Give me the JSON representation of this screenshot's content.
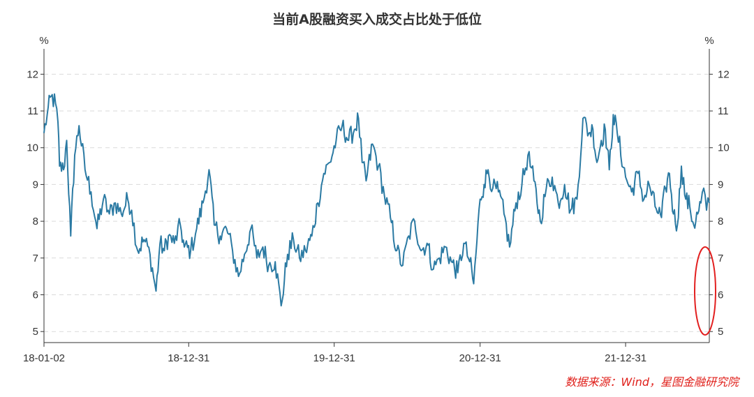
{
  "chart_data": {
    "type": "line",
    "title": "当前A股融资买入成交占比处于低位",
    "ylabel_left": "%",
    "ylabel_right": "%",
    "ylim": [
      4.7,
      12.5
    ],
    "yticks": [
      5,
      6,
      7,
      8,
      9,
      10,
      11,
      12
    ],
    "x_tick_labels": [
      "18-01-02",
      "18-12-31",
      "19-12-31",
      "20-12-31",
      "21-12-31"
    ],
    "x_range": [
      "2018-01-02",
      "2022-07-29"
    ],
    "grid": "horizontal dashed",
    "annotation": "red ellipse highlighting latest low values (2022-04 to 2022-07)",
    "series": [
      {
        "color": "#2b7aa3",
        "points": [
          [
            "2018-01-02",
            10.4
          ],
          [
            "2018-01-10",
            10.9
          ],
          [
            "2018-01-20",
            11.4
          ],
          [
            "2018-01-31",
            11.2
          ],
          [
            "2018-02-06",
            10.7
          ],
          [
            "2018-02-10",
            9.5
          ],
          [
            "2018-02-20",
            9.4
          ],
          [
            "2018-02-28",
            10.2
          ],
          [
            "2018-03-10",
            7.6
          ],
          [
            "2018-03-20",
            9.8
          ],
          [
            "2018-03-31",
            10.6
          ],
          [
            "2018-04-15",
            9.4
          ],
          [
            "2018-04-30",
            8.8
          ],
          [
            "2018-05-15",
            7.8
          ],
          [
            "2018-05-31",
            8.6
          ],
          [
            "2018-06-15",
            8.2
          ],
          [
            "2018-06-30",
            8.5
          ],
          [
            "2018-07-15",
            8.2
          ],
          [
            "2018-07-31",
            8.6
          ],
          [
            "2018-08-10",
            8.3
          ],
          [
            "2018-08-25",
            7.2
          ],
          [
            "2018-09-10",
            7.5
          ],
          [
            "2018-09-25",
            7.1
          ],
          [
            "2018-10-10",
            6.1
          ],
          [
            "2018-10-20",
            7.4
          ],
          [
            "2018-10-31",
            7.2
          ],
          [
            "2018-11-10",
            7.6
          ],
          [
            "2018-11-25",
            7.4
          ],
          [
            "2018-12-10",
            7.9
          ],
          [
            "2018-12-20",
            7.3
          ],
          [
            "2019-01-05",
            7.2
          ],
          [
            "2019-01-20",
            7.8
          ],
          [
            "2019-02-05",
            8.5
          ],
          [
            "2019-02-20",
            9.4
          ],
          [
            "2019-03-05",
            7.9
          ],
          [
            "2019-03-20",
            7.6
          ],
          [
            "2019-04-05",
            7.8
          ],
          [
            "2019-04-20",
            7.2
          ],
          [
            "2019-05-05",
            6.5
          ],
          [
            "2019-05-20",
            7.1
          ],
          [
            "2019-06-05",
            7.8
          ],
          [
            "2019-06-20",
            7.0
          ],
          [
            "2019-07-05",
            7.3
          ],
          [
            "2019-07-20",
            6.8
          ],
          [
            "2019-08-05",
            6.9
          ],
          [
            "2019-08-20",
            5.7
          ],
          [
            "2019-09-05",
            7.1
          ],
          [
            "2019-09-20",
            7.5
          ],
          [
            "2019-10-05",
            7.0
          ],
          [
            "2019-10-20",
            7.2
          ],
          [
            "2019-11-05",
            7.6
          ],
          [
            "2019-11-20",
            8.5
          ],
          [
            "2019-12-05",
            9.3
          ],
          [
            "2019-12-20",
            9.6
          ],
          [
            "2020-01-05",
            10.2
          ],
          [
            "2020-01-20",
            10.6
          ],
          [
            "2020-02-05",
            10.2
          ],
          [
            "2020-02-20",
            10.5
          ],
          [
            "2020-03-01",
            10.8
          ],
          [
            "2020-03-10",
            9.6
          ],
          [
            "2020-03-20",
            9.1
          ],
          [
            "2020-04-05",
            10.1
          ],
          [
            "2020-04-20",
            9.5
          ],
          [
            "2020-05-05",
            8.7
          ],
          [
            "2020-05-20",
            8.1
          ],
          [
            "2020-06-05",
            7.2
          ],
          [
            "2020-06-20",
            6.8
          ],
          [
            "2020-07-05",
            7.6
          ],
          [
            "2020-07-20",
            8.0
          ],
          [
            "2020-08-05",
            7.2
          ],
          [
            "2020-08-20",
            7.4
          ],
          [
            "2020-09-05",
            6.7
          ],
          [
            "2020-09-20",
            7.0
          ],
          [
            "2020-10-05",
            7.3
          ],
          [
            "2020-10-20",
            6.9
          ],
          [
            "2020-11-05",
            6.6
          ],
          [
            "2020-11-20",
            7.4
          ],
          [
            "2020-12-05",
            6.9
          ],
          [
            "2020-12-15",
            6.3
          ],
          [
            "2020-12-31",
            8.6
          ],
          [
            "2021-01-10",
            9.0
          ],
          [
            "2021-01-20",
            9.4
          ],
          [
            "2021-02-01",
            8.9
          ],
          [
            "2021-02-15",
            8.8
          ],
          [
            "2021-03-01",
            8.2
          ],
          [
            "2021-03-15",
            7.3
          ],
          [
            "2021-03-31",
            8.5
          ],
          [
            "2021-04-15",
            9.0
          ],
          [
            "2021-04-30",
            9.8
          ],
          [
            "2021-05-15",
            9.1
          ],
          [
            "2021-05-31",
            8.0
          ],
          [
            "2021-06-15",
            8.9
          ],
          [
            "2021-06-30",
            9.2
          ],
          [
            "2021-07-15",
            8.5
          ],
          [
            "2021-07-31",
            9.0
          ],
          [
            "2021-08-15",
            8.3
          ],
          [
            "2021-08-31",
            8.6
          ],
          [
            "2021-09-15",
            10.8
          ],
          [
            "2021-09-30",
            10.4
          ],
          [
            "2021-10-10",
            10.5
          ],
          [
            "2021-10-20",
            9.6
          ],
          [
            "2021-10-31",
            10.2
          ],
          [
            "2021-11-10",
            10.5
          ],
          [
            "2021-11-20",
            9.4
          ],
          [
            "2021-11-30",
            10.9
          ],
          [
            "2021-12-10",
            10.4
          ],
          [
            "2021-12-31",
            9.2
          ],
          [
            "2022-01-15",
            8.8
          ],
          [
            "2022-01-31",
            9.3
          ],
          [
            "2022-02-15",
            8.6
          ],
          [
            "2022-02-28",
            9.0
          ],
          [
            "2022-03-15",
            8.4
          ],
          [
            "2022-03-31",
            8.1
          ],
          [
            "2022-04-10",
            8.9
          ],
          [
            "2022-04-20",
            9.3
          ],
          [
            "2022-04-30",
            8.2
          ],
          [
            "2022-05-10",
            7.9
          ],
          [
            "2022-05-20",
            9.5
          ],
          [
            "2022-05-31",
            8.6
          ],
          [
            "2022-06-10",
            8.4
          ],
          [
            "2022-06-20",
            7.9
          ],
          [
            "2022-06-30",
            8.2
          ],
          [
            "2022-07-08",
            8.5
          ],
          [
            "2022-07-15",
            8.9
          ],
          [
            "2022-07-22",
            8.3
          ],
          [
            "2022-07-29",
            8.5
          ]
        ]
      }
    ]
  },
  "source_note": "数据来源：Wind，星图金融研究院"
}
